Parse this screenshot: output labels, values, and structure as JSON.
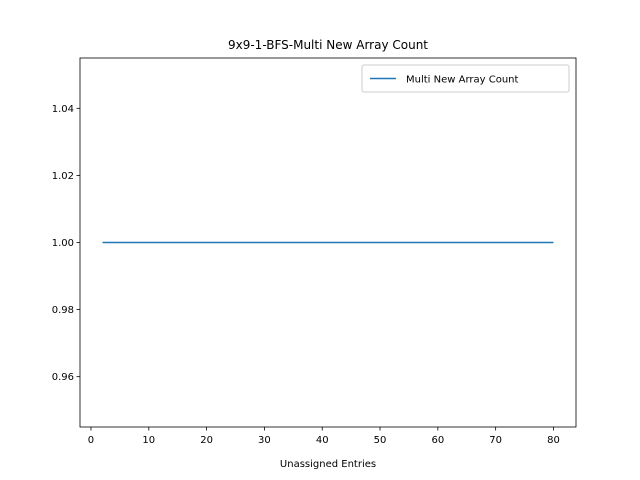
{
  "chart_data": {
    "type": "line",
    "title": "9x9-1-BFS-Multi New Array Count",
    "xlabel": "Unassigned Entries",
    "ylabel": "",
    "xlim": [
      -1.9,
      83.9
    ],
    "ylim": [
      0.945,
      1.055
    ],
    "xticks": [
      0,
      10,
      20,
      30,
      40,
      50,
      60,
      70,
      80
    ],
    "yticks": [
      0.96,
      0.98,
      1.0,
      1.02,
      1.04
    ],
    "ytick_labels": [
      "0.96",
      "0.98",
      "1.00",
      "1.02",
      "1.04"
    ],
    "legend_position": "top-right",
    "grid": false,
    "series": [
      {
        "name": "Multi New Array Count",
        "color": "#1f77b4",
        "x": [
          2,
          80
        ],
        "y": [
          1.0,
          1.0
        ]
      }
    ]
  }
}
